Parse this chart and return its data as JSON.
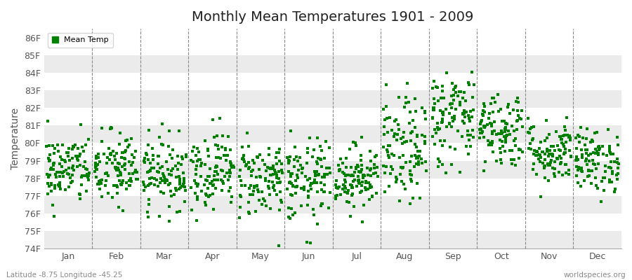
{
  "title": "Monthly Mean Temperatures 1901 - 2009",
  "ylabel": "Temperature",
  "xlabel_labels": [
    "Jan",
    "Feb",
    "Mar",
    "Apr",
    "May",
    "Jun",
    "Jul",
    "Aug",
    "Sep",
    "Oct",
    "Nov",
    "Dec"
  ],
  "ylim": [
    74,
    86.5
  ],
  "yticks": [
    74,
    75,
    76,
    77,
    78,
    79,
    80,
    81,
    82,
    83,
    84,
    85,
    86
  ],
  "ytick_labels": [
    "74F",
    "75F",
    "76F",
    "77F",
    "78F",
    "79F",
    "80F",
    "81F",
    "82F",
    "83F",
    "84F",
    "85F",
    "86F"
  ],
  "marker_color": "#008000",
  "marker": "s",
  "marker_size": 4,
  "legend_label": "Mean Temp",
  "subtitle_left": "Latitude -8.75 Longitude -45.25",
  "subtitle_right": "worldspecies.org",
  "bg_color": "#ffffff",
  "plot_bg_color": "#ffffff",
  "stripe_color": "#ebebeb",
  "n_years": 109,
  "monthly_means": [
    78.5,
    78.5,
    78.3,
    78.5,
    78.0,
    77.8,
    78.1,
    79.5,
    81.5,
    80.8,
    79.5,
    79.0
  ],
  "monthly_stds": [
    1.0,
    1.1,
    1.0,
    1.1,
    1.1,
    1.2,
    0.9,
    1.5,
    1.4,
    1.1,
    0.9,
    0.9
  ],
  "seed": 42
}
